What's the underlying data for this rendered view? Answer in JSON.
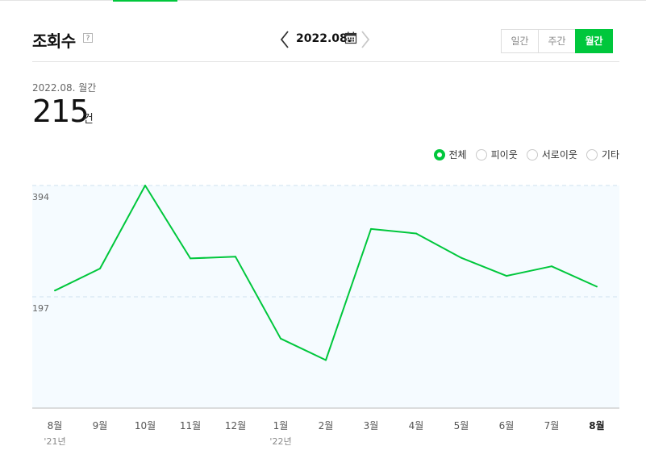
{
  "header": {
    "title": "조회수",
    "help": "?",
    "date": "2022.08.",
    "tabs": [
      {
        "label": "일간",
        "active": false
      },
      {
        "label": "주간",
        "active": false
      },
      {
        "label": "월간",
        "active": true
      }
    ]
  },
  "summary": {
    "period": "2022.08. 월간",
    "total": "215",
    "unit": "건"
  },
  "legend": [
    {
      "label": "전체",
      "selected": true
    },
    {
      "label": "피이웃",
      "selected": false
    },
    {
      "label": "서로이웃",
      "selected": false
    },
    {
      "label": "기타",
      "selected": false
    }
  ],
  "colors": {
    "accent": "#00c73c",
    "plot_bg": "#f5fbff",
    "grid": "#d6e6f2"
  },
  "chart_data": {
    "type": "line",
    "categories": [
      "8월",
      "9월",
      "10월",
      "11월",
      "12월",
      "1월",
      "2월",
      "3월",
      "4월",
      "5월",
      "6월",
      "7월",
      "8월"
    ],
    "year_labels": [
      "'21년",
      "",
      "",
      "",
      "",
      "'22년",
      "",
      "",
      "",
      "",
      "",
      "",
      ""
    ],
    "series": [
      {
        "values": [
          208,
          247,
          394,
          265,
          268,
          123,
          85,
          317,
          309,
          266,
          234,
          251,
          215
        ]
      }
    ],
    "yticks": [
      394,
      197
    ],
    "ylim": [
      0,
      394
    ],
    "grid": true
  }
}
